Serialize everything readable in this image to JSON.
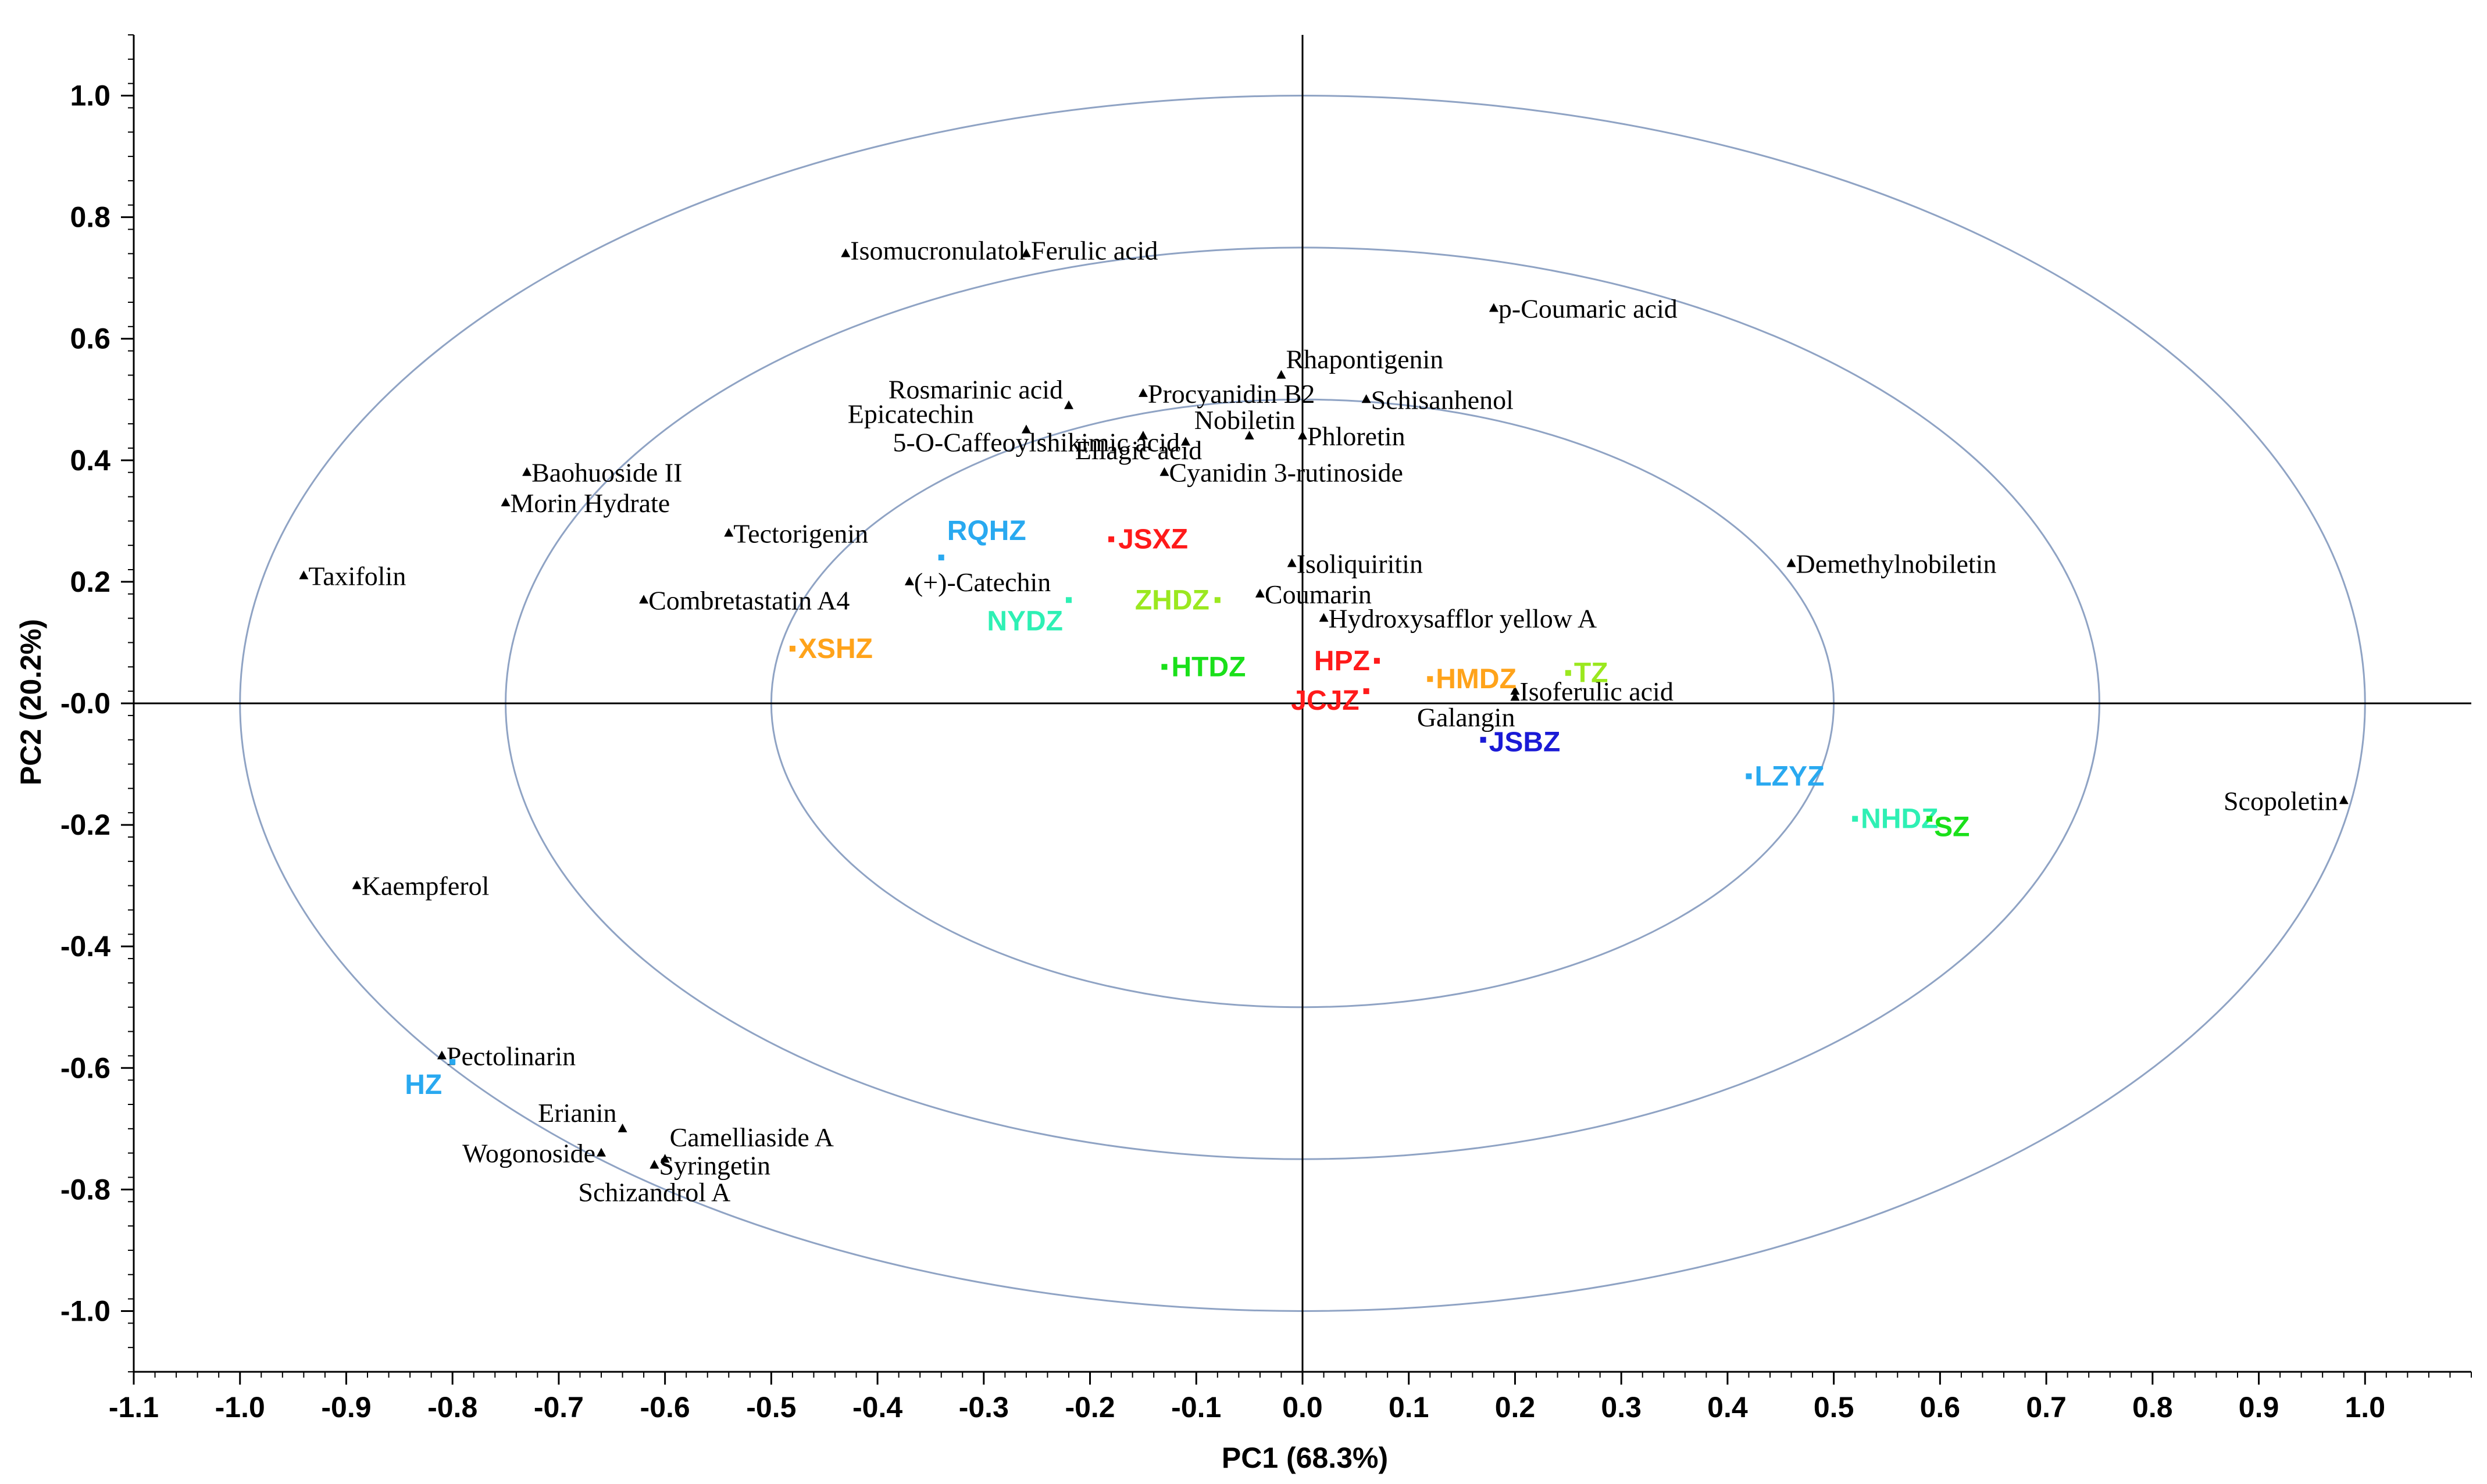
{
  "chart_data": {
    "type": "scatter",
    "subtype": "pca-biplot",
    "xlabel": "PC1 (68.3%)",
    "ylabel": "PC2 (20.2%)",
    "xlim": [
      -1.1,
      1.1
    ],
    "ylim": [
      -1.1,
      1.1
    ],
    "x_ticks": [
      "-1.1",
      "-1.0",
      "-0.9",
      "-0.8",
      "-0.7",
      "-0.6",
      "-0.5",
      "-0.4",
      "-0.3",
      "-0.2",
      "-0.1",
      "0.0",
      "0.1",
      "0.2",
      "0.3",
      "0.4",
      "0.5",
      "0.6",
      "0.7",
      "0.8",
      "0.9",
      "1.0"
    ],
    "x_tick_values": [
      -1.1,
      -1.0,
      -0.9,
      -0.8,
      -0.7,
      -0.6,
      -0.5,
      -0.4,
      -0.3,
      -0.2,
      -0.1,
      0.0,
      0.1,
      0.2,
      0.3,
      0.4,
      0.5,
      0.6,
      0.7,
      0.8,
      0.9,
      1.0
    ],
    "y_ticks": [
      "1.0",
      "0.8",
      "0.6",
      "0.4",
      "0.2",
      "-0.0",
      "-0.2",
      "-0.4",
      "-0.6",
      "-0.8",
      "-1.0"
    ],
    "y_tick_values": [
      1.0,
      0.8,
      0.6,
      0.4,
      0.2,
      0.0,
      -0.2,
      -0.4,
      -0.6,
      -0.8,
      -1.0
    ],
    "ellipse_radii": [
      0.5,
      0.75,
      1.0
    ],
    "colors": {
      "ellipse": "#8fa3c4",
      "axis": "#000000",
      "variable_marker": "#000000"
    },
    "variables": [
      {
        "name": "Isomucronulatol",
        "x": -0.43,
        "y": 0.74
      },
      {
        "name": "Ferulic acid",
        "x": -0.26,
        "y": 0.74
      },
      {
        "name": "p-Coumaric acid",
        "x": 0.18,
        "y": 0.65
      },
      {
        "name": "Rhapontigenin",
        "x": -0.02,
        "y": 0.54
      },
      {
        "name": "Rosmarinic acid",
        "x": -0.22,
        "y": 0.49
      },
      {
        "name": "Procyanidin B2",
        "x": -0.15,
        "y": 0.51
      },
      {
        "name": "Schisanhenol",
        "x": 0.06,
        "y": 0.5
      },
      {
        "name": "Epicatechin",
        "x": -0.26,
        "y": 0.45
      },
      {
        "name": "Nobiletin",
        "x": -0.05,
        "y": 0.44
      },
      {
        "name": "Phloretin",
        "x": 0.0,
        "y": 0.44
      },
      {
        "name": "5-O-Caffeoylshikimic acid",
        "x": -0.11,
        "y": 0.43
      },
      {
        "name": "Ellagic acid",
        "x": -0.15,
        "y": 0.44
      },
      {
        "name": "Cyanidin 3-rutinoside",
        "x": -0.13,
        "y": 0.38
      },
      {
        "name": "Baohuoside II",
        "x": -0.73,
        "y": 0.38
      },
      {
        "name": "Morin Hydrate",
        "x": -0.75,
        "y": 0.33
      },
      {
        "name": "Tectorigenin",
        "x": -0.54,
        "y": 0.28
      },
      {
        "name": "Taxifolin",
        "x": -0.94,
        "y": 0.21
      },
      {
        "name": "(+)-Catechin",
        "x": -0.37,
        "y": 0.2
      },
      {
        "name": "Combretastatin A4",
        "x": -0.62,
        "y": 0.17
      },
      {
        "name": "Isoliquiritin",
        "x": -0.01,
        "y": 0.23
      },
      {
        "name": "Coumarin",
        "x": -0.04,
        "y": 0.18
      },
      {
        "name": "Hydroxysafflor yellow A",
        "x": 0.02,
        "y": 0.14
      },
      {
        "name": "Demethylnobiletin",
        "x": 0.46,
        "y": 0.23
      },
      {
        "name": "Isoferulic acid",
        "x": 0.2,
        "y": 0.02
      },
      {
        "name": "Galangin",
        "x": 0.2,
        "y": 0.01
      },
      {
        "name": "Scopoletin",
        "x": 0.98,
        "y": -0.16
      },
      {
        "name": "Kaempferol",
        "x": -0.89,
        "y": -0.3
      },
      {
        "name": "Pectolinarin",
        "x": -0.81,
        "y": -0.58
      },
      {
        "name": "Erianin",
        "x": -0.64,
        "y": -0.7
      },
      {
        "name": "Camelliaside A",
        "x": -0.6,
        "y": -0.75
      },
      {
        "name": "Syringetin",
        "x": -0.61,
        "y": -0.76
      },
      {
        "name": "Wogonoside",
        "x": -0.66,
        "y": -0.74
      },
      {
        "name": "Schizandrol A",
        "x": -0.61,
        "y": -0.76
      }
    ],
    "samples": [
      {
        "name": "RQHZ",
        "x": -0.34,
        "y": 0.24,
        "color": "#29a9f0"
      },
      {
        "name": "JSXZ",
        "x": -0.18,
        "y": 0.27,
        "color": "#ff1a1a"
      },
      {
        "name": "NYDZ",
        "x": -0.22,
        "y": 0.17,
        "color": "#2ef0b4"
      },
      {
        "name": "ZHDZ",
        "x": -0.08,
        "y": 0.17,
        "color": "#9be81f"
      },
      {
        "name": "XSHZ",
        "x": -0.48,
        "y": 0.09,
        "color": "#ffa31a"
      },
      {
        "name": "HTDZ",
        "x": -0.13,
        "y": 0.06,
        "color": "#1ae01a"
      },
      {
        "name": "HPZ",
        "x": 0.07,
        "y": 0.07,
        "color": "#ff1a1a"
      },
      {
        "name": "JCJZ",
        "x": 0.06,
        "y": 0.02,
        "color": "#ff1a1a"
      },
      {
        "name": "HMDZ",
        "x": 0.12,
        "y": 0.04,
        "color": "#ffa31a"
      },
      {
        "name": "TZ",
        "x": 0.25,
        "y": 0.05,
        "color": "#9be81f"
      },
      {
        "name": "JSBZ",
        "x": 0.17,
        "y": -0.06,
        "color": "#1a1ad6"
      },
      {
        "name": "LZYZ",
        "x": 0.42,
        "y": -0.12,
        "color": "#29a9f0"
      },
      {
        "name": "NHDZ",
        "x": 0.52,
        "y": -0.19,
        "color": "#2ef0b4"
      },
      {
        "name": "SZ",
        "x": 0.59,
        "y": -0.19,
        "color": "#1ae01a"
      },
      {
        "name": "HZ",
        "x": -0.8,
        "y": -0.59,
        "color": "#29a9f0"
      }
    ]
  }
}
